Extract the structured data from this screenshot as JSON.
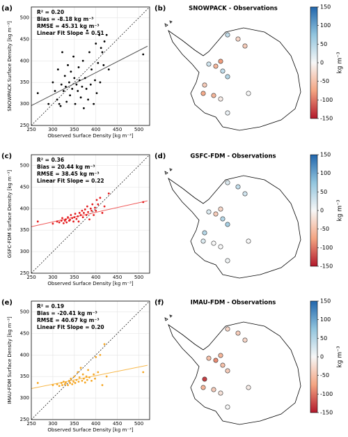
{
  "chart_data": [
    {
      "type": "scatter",
      "panel": "(a)",
      "color": "#000000",
      "fit_color": "#555555",
      "xlabel": "Observed Surface Density [kg m⁻³]",
      "ylabel": "SNOWPACK Surface Density [kg m⁻³]",
      "annotations": [
        "R² = 0.20",
        "Bias = -8.18 kg m⁻³",
        "RMSE = 45.31 kg m⁻³",
        "Linear Fit Slope = 0.51"
      ],
      "xlim": [
        250,
        525
      ],
      "ylim": [
        250,
        525
      ],
      "xticks": [
        250,
        300,
        350,
        400,
        450,
        500
      ],
      "yticks": [
        250,
        300,
        350,
        400,
        450,
        500
      ],
      "grid": true,
      "x": [
        265,
        290,
        300,
        305,
        310,
        312,
        315,
        318,
        320,
        322,
        325,
        328,
        330,
        332,
        335,
        338,
        340,
        342,
        345,
        348,
        350,
        352,
        355,
        358,
        360,
        362,
        365,
        368,
        370,
        372,
        375,
        378,
        380,
        382,
        385,
        388,
        390,
        395,
        398,
        400,
        402,
        405,
        408,
        410,
        412,
        415,
        418,
        420,
        425,
        430,
        510
      ],
      "values": [
        325,
        300,
        350,
        330,
        310,
        380,
        300,
        295,
        345,
        420,
        330,
        365,
        340,
        305,
        390,
        350,
        320,
        375,
        335,
        410,
        360,
        300,
        345,
        330,
        385,
        355,
        315,
        340,
        400,
        290,
        360,
        335,
        470,
        310,
        420,
        345,
        380,
        300,
        355,
        440,
        325,
        395,
        460,
        350,
        430,
        420,
        390,
        445,
        460,
        380,
        415
      ],
      "fit_line": {
        "x": [
          250,
          520
        ],
        "y": [
          296,
          434
        ]
      }
    },
    {
      "type": "scatter",
      "panel": "(c)",
      "color": "#e31a1c",
      "fit_color": "#f05a5a",
      "xlabel": "Observed Surface Density [kg m⁻³]",
      "ylabel": "GSFC-FDM Surface Density [kg m⁻³]",
      "annotations": [
        "R² = 0.36",
        "Bias = 20.44 kg m⁻³",
        "RMSE = 38.45 kg m⁻³",
        "Linear Fit Slope = 0.22"
      ],
      "xlim": [
        250,
        525
      ],
      "ylim": [
        250,
        525
      ],
      "xticks": [
        250,
        300,
        350,
        400,
        450,
        500
      ],
      "yticks": [
        250,
        300,
        350,
        400,
        450,
        500
      ],
      "grid": true,
      "x": [
        265,
        300,
        310,
        315,
        320,
        322,
        325,
        328,
        330,
        332,
        335,
        338,
        340,
        342,
        345,
        348,
        350,
        352,
        355,
        358,
        360,
        362,
        365,
        368,
        370,
        372,
        375,
        378,
        380,
        382,
        385,
        388,
        390,
        392,
        395,
        398,
        400,
        402,
        405,
        410,
        415,
        420,
        430,
        510
      ],
      "values": [
        370,
        365,
        370,
        368,
        372,
        378,
        366,
        372,
        375,
        368,
        380,
        372,
        374,
        385,
        378,
        370,
        380,
        388,
        376,
        382,
        370,
        390,
        385,
        395,
        380,
        390,
        398,
        385,
        405,
        392,
        375,
        400,
        395,
        410,
        385,
        402,
        395,
        420,
        410,
        425,
        390,
        405,
        435,
        415
      ],
      "fit_line": {
        "x": [
          250,
          520
        ],
        "y": [
          358,
          418
        ]
      }
    },
    {
      "type": "scatter",
      "panel": "(e)",
      "color": "#f5a623",
      "fit_color": "#f8b84a",
      "xlabel": "Observed Surface Density [kg m⁻³]",
      "ylabel": "IMAU-FDM Surface Density [kg m⁻³]",
      "annotations": [
        "R² = 0.19",
        "Bias = -20.41 kg m⁻³",
        "RMSE = 40.67 kg m⁻³",
        "Linear Fit Slope = 0.20"
      ],
      "xlim": [
        250,
        525
      ],
      "ylim": [
        250,
        525
      ],
      "xticks": [
        250,
        300,
        350,
        400,
        450,
        500
      ],
      "yticks": [
        250,
        300,
        350,
        400,
        450,
        500
      ],
      "grid": true,
      "x": [
        265,
        300,
        310,
        315,
        320,
        322,
        325,
        328,
        330,
        335,
        338,
        340,
        342,
        345,
        348,
        350,
        352,
        355,
        358,
        360,
        362,
        365,
        368,
        370,
        372,
        375,
        378,
        380,
        382,
        385,
        390,
        395,
        398,
        400,
        405,
        410,
        415,
        420,
        425,
        510
      ],
      "values": [
        335,
        330,
        332,
        328,
        335,
        330,
        338,
        332,
        336,
        330,
        340,
        335,
        345,
        332,
        338,
        350,
        335,
        342,
        360,
        338,
        348,
        370,
        340,
        355,
        345,
        336,
        350,
        342,
        365,
        348,
        340,
        355,
        345,
        395,
        360,
        400,
        330,
        425,
        350,
        360
      ],
      "fit_line": {
        "x": [
          250,
          520
        ],
        "y": [
          322,
          376
        ]
      }
    }
  ],
  "maps": [
    {
      "panel": "(b)",
      "title": "SNOWPACK - Observations",
      "values": [
        40,
        -30,
        -40,
        30,
        -60,
        -80,
        40,
        50,
        -40,
        -70,
        -60,
        -10,
        0,
        10
      ]
    },
    {
      "panel": "(d)",
      "title": "GSFC-FDM - Observations",
      "values": [
        20,
        40,
        30,
        20,
        -40,
        -30,
        50,
        60,
        50,
        20,
        0,
        0,
        0,
        5
      ]
    },
    {
      "panel": "(f)",
      "title": "IMAU-FDM - Observations",
      "values": [
        -30,
        -40,
        -30,
        -50,
        -90,
        -60,
        -50,
        -40,
        -130,
        -60,
        -40,
        -20,
        -10,
        0
      ]
    }
  ],
  "colorbar": {
    "lim": [
      -150,
      150
    ],
    "ticks": [
      150,
      100,
      50,
      0,
      -50,
      -100,
      -150
    ],
    "label": "kg m⁻³",
    "colors": [
      "#b2182b",
      "#f4a582",
      "#f7f7f7",
      "#92c5de",
      "#2166ac"
    ]
  }
}
